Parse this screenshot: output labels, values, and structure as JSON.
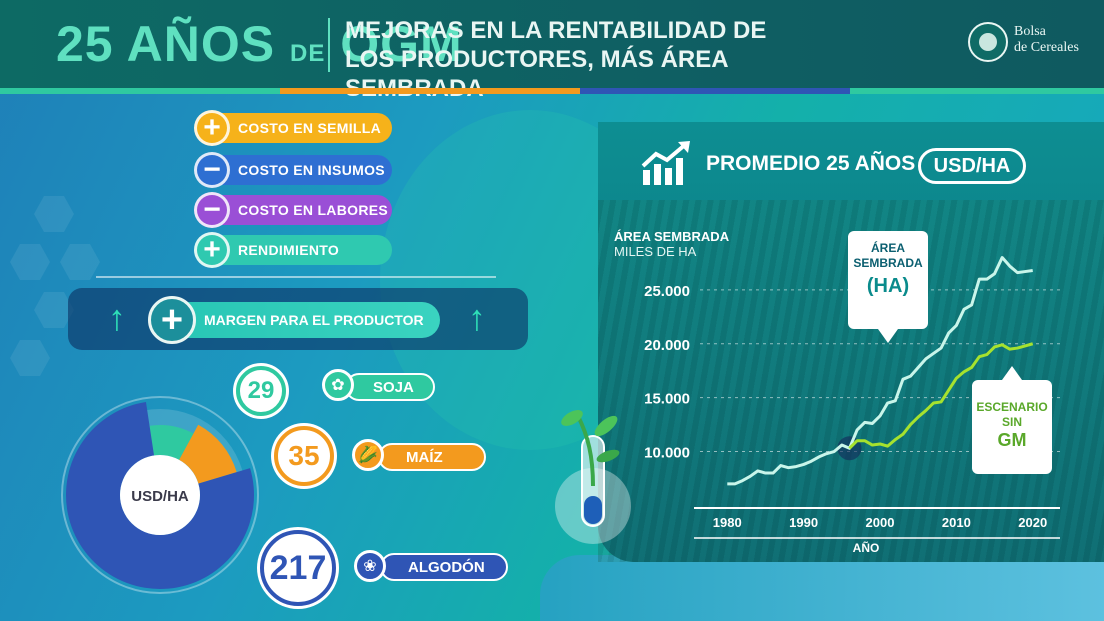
{
  "header": {
    "title_big_a": "25 AÑOS",
    "title_small": "DE",
    "title_big_b": "OGM",
    "subtitle_line1": "MEJORAS EN LA RENTABILIDAD DE",
    "subtitle_line2": "LOS PRODUCTORES, MÁS ÁREA SEMBRADA",
    "brand_line1": "Bolsa",
    "brand_line2": "de Cereales"
  },
  "factors": [
    {
      "symbol": "+",
      "label": "COSTO EN SEMILLA",
      "color": "#f6b21a"
    },
    {
      "symbol": "−",
      "label": "COSTO EN INSUMOS",
      "color": "#2e6fd2"
    },
    {
      "symbol": "−",
      "label": "COSTO EN LABORES",
      "color": "#9a4fd6"
    },
    {
      "symbol": "+",
      "label": "RENDIMIENTO",
      "color": "#2fc9b0"
    }
  ],
  "margin": {
    "symbol": "+",
    "label": "MARGEN PARA EL PRODUCTOR",
    "arrow": "↑"
  },
  "donut_center": "USD/HA",
  "crops": [
    {
      "value": "29",
      "label": "SOJA",
      "icon": "soy-pod-icon",
      "glyph": "✿",
      "color": "#2fc9a0"
    },
    {
      "value": "35",
      "label": "MAÍZ",
      "icon": "corn-icon",
      "glyph": "🌽",
      "color": "#f39a1e"
    },
    {
      "value": "217",
      "label": "ALGODÓN",
      "icon": "cotton-icon",
      "glyph": "❀",
      "color": "#2f55b5"
    }
  ],
  "panel": {
    "title": "PROMEDIO 25 AÑOS",
    "unit": "USD/HA",
    "callout_area_l1a": "ÁREA",
    "callout_area_l1b": "SEMBRADA",
    "callout_area_l2": "(HA)",
    "callout_gm_l1a": "ESCENARIO",
    "callout_gm_l1b": "SIN",
    "callout_gm_l2": "GM"
  },
  "chart_data": {
    "type": "line",
    "ylabel_line1": "ÁREA SEMBRADA",
    "ylabel_line2": "MILES DE HA",
    "xlabel": "AÑO",
    "xlim": [
      1978,
      2022
    ],
    "ylim": [
      5500,
      30000
    ],
    "y_ticks": [
      10000,
      15000,
      20000,
      25000
    ],
    "y_tick_labels": [
      "10.000",
      "15.000",
      "20.000",
      "25.000"
    ],
    "x_ticks": [
      1980,
      1990,
      2000,
      2010,
      2020
    ],
    "grid": "horizontal-dashed",
    "series": [
      {
        "name": "ÁREA SEMBRADA (HA)",
        "color": "#c9f5ea",
        "x": [
          1980,
          1981,
          1982,
          1983,
          1984,
          1985,
          1986,
          1987,
          1988,
          1989,
          1990,
          1991,
          1992,
          1993,
          1994,
          1995,
          1996,
          1997,
          1998,
          1999,
          2000,
          2001,
          2002,
          2003,
          2004,
          2005,
          2006,
          2007,
          2008,
          2009,
          2010,
          2011,
          2012,
          2013,
          2014,
          2015,
          2016,
          2017,
          2018,
          2019,
          2020
        ],
        "values": [
          7000,
          7000,
          7300,
          7700,
          8200,
          8000,
          8000,
          8700,
          8500,
          8600,
          8800,
          9100,
          9500,
          9800,
          10000,
          10600,
          10300,
          12000,
          12700,
          12600,
          13300,
          14500,
          14700,
          16700,
          17000,
          17800,
          18600,
          19100,
          19600,
          21000,
          21700,
          23200,
          23600,
          26000,
          26000,
          26500,
          28000,
          27200,
          26600,
          26700,
          26800
        ]
      },
      {
        "name": "ESCENARIO SIN GM",
        "color": "#a6e22e",
        "x": [
          1996,
          1997,
          1998,
          1999,
          2000,
          2001,
          2002,
          2003,
          2004,
          2005,
          2006,
          2007,
          2008,
          2009,
          2010,
          2011,
          2012,
          2013,
          2014,
          2015,
          2016,
          2017,
          2018,
          2019,
          2020
        ],
        "values": [
          10300,
          11000,
          11000,
          10600,
          10700,
          10500,
          11100,
          11600,
          12500,
          13200,
          13800,
          14500,
          14600,
          15700,
          16800,
          17400,
          17800,
          18800,
          19000,
          19700,
          19900,
          19500,
          19600,
          19800,
          20000
        ]
      }
    ]
  }
}
